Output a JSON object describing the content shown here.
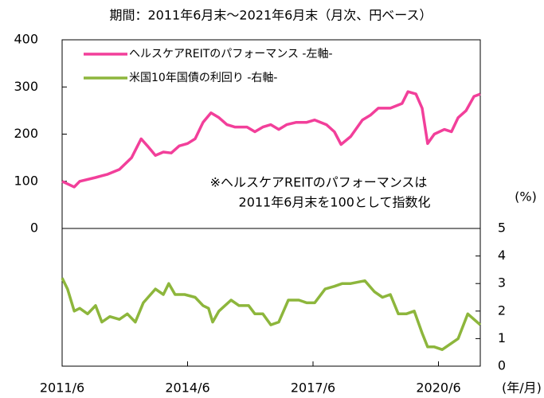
{
  "chart_data": [
    {
      "type": "line",
      "title": "期間：2011年6月末～2021年6月末（月次、円ベース）",
      "annotation": [
        "※ヘルスケアREITのパフォーマンスは",
        "2011年6月末を100として指数化"
      ],
      "ylim": [
        0,
        400
      ],
      "yticks": [
        0,
        100,
        200,
        300,
        400
      ],
      "xlim": [
        2011.5,
        2021.5
      ],
      "legend": "upper left",
      "series": [
        {
          "name": "ヘルスケアREITのパフォーマンス -左軸-",
          "color": "#f23f9a",
          "x": [
            2011.5,
            2011.79,
            2011.92,
            2012.3,
            2012.59,
            2012.87,
            2013.16,
            2013.39,
            2013.54,
            2013.73,
            2013.92,
            2014.11,
            2014.3,
            2014.5,
            2014.68,
            2014.87,
            2015.06,
            2015.25,
            2015.44,
            2015.63,
            2015.92,
            2016.11,
            2016.3,
            2016.49,
            2016.68,
            2016.87,
            2017.1,
            2017.35,
            2017.54,
            2017.82,
            2018.01,
            2018.17,
            2018.4,
            2018.68,
            2018.87,
            2019.06,
            2019.35,
            2019.63,
            2019.77,
            2019.96,
            2020.11,
            2020.24,
            2020.4,
            2020.64,
            2020.81,
            2020.97,
            2021.16,
            2021.35,
            2021.5
          ],
          "values": [
            100,
            88,
            100,
            108,
            115,
            125,
            150,
            190,
            175,
            155,
            162,
            160,
            175,
            180,
            190,
            225,
            245,
            235,
            220,
            215,
            215,
            205,
            215,
            220,
            210,
            220,
            225,
            225,
            230,
            220,
            205,
            178,
            195,
            230,
            240,
            255,
            255,
            265,
            290,
            285,
            255,
            180,
            200,
            210,
            205,
            235,
            250,
            280,
            285
          ]
        }
      ]
    },
    {
      "type": "line",
      "ylim": [
        0,
        5
      ],
      "yticks": [
        0,
        1,
        2,
        3,
        4,
        5
      ],
      "yaxis_position": "right",
      "ylabel": "(%)",
      "xlim": [
        2011.5,
        2021.5
      ],
      "xlabel": "(年/月)",
      "xticks": [
        {
          "value": 2011.5,
          "label": "2011/6"
        },
        {
          "value": 2014.5,
          "label": "2014/6"
        },
        {
          "value": 2017.5,
          "label": "2017/6"
        },
        {
          "value": 2020.5,
          "label": "2020/6"
        }
      ],
      "series": [
        {
          "name": "米国10年国債の利回り -右軸-",
          "color": "#8db63c",
          "x": [
            2011.5,
            2011.63,
            2011.79,
            2011.92,
            2012.11,
            2012.3,
            2012.45,
            2012.64,
            2012.87,
            2013.06,
            2013.25,
            2013.44,
            2013.73,
            2013.92,
            2014.05,
            2014.2,
            2014.43,
            2014.68,
            2014.87,
            2015.0,
            2015.1,
            2015.25,
            2015.54,
            2015.73,
            2015.96,
            2016.11,
            2016.3,
            2016.49,
            2016.68,
            2016.91,
            2017.16,
            2017.35,
            2017.54,
            2017.79,
            2018.01,
            2018.2,
            2018.4,
            2018.74,
            2018.97,
            2019.16,
            2019.35,
            2019.54,
            2019.73,
            2019.92,
            2020.11,
            2020.24,
            2020.4,
            2020.59,
            2020.78,
            2020.97,
            2021.2,
            2021.35,
            2021.5
          ],
          "values": [
            3.2,
            2.8,
            2.0,
            2.1,
            1.9,
            2.2,
            1.6,
            1.8,
            1.7,
            1.9,
            1.6,
            2.3,
            2.8,
            2.6,
            3.0,
            2.6,
            2.6,
            2.5,
            2.2,
            2.1,
            1.6,
            2.0,
            2.4,
            2.2,
            2.2,
            1.9,
            1.9,
            1.5,
            1.6,
            2.4,
            2.4,
            2.3,
            2.3,
            2.8,
            2.9,
            3.0,
            3.0,
            3.1,
            2.7,
            2.5,
            2.6,
            1.9,
            1.9,
            2.0,
            1.2,
            0.7,
            0.7,
            0.6,
            0.8,
            1.0,
            1.9,
            1.7,
            1.5
          ]
        }
      ]
    }
  ]
}
